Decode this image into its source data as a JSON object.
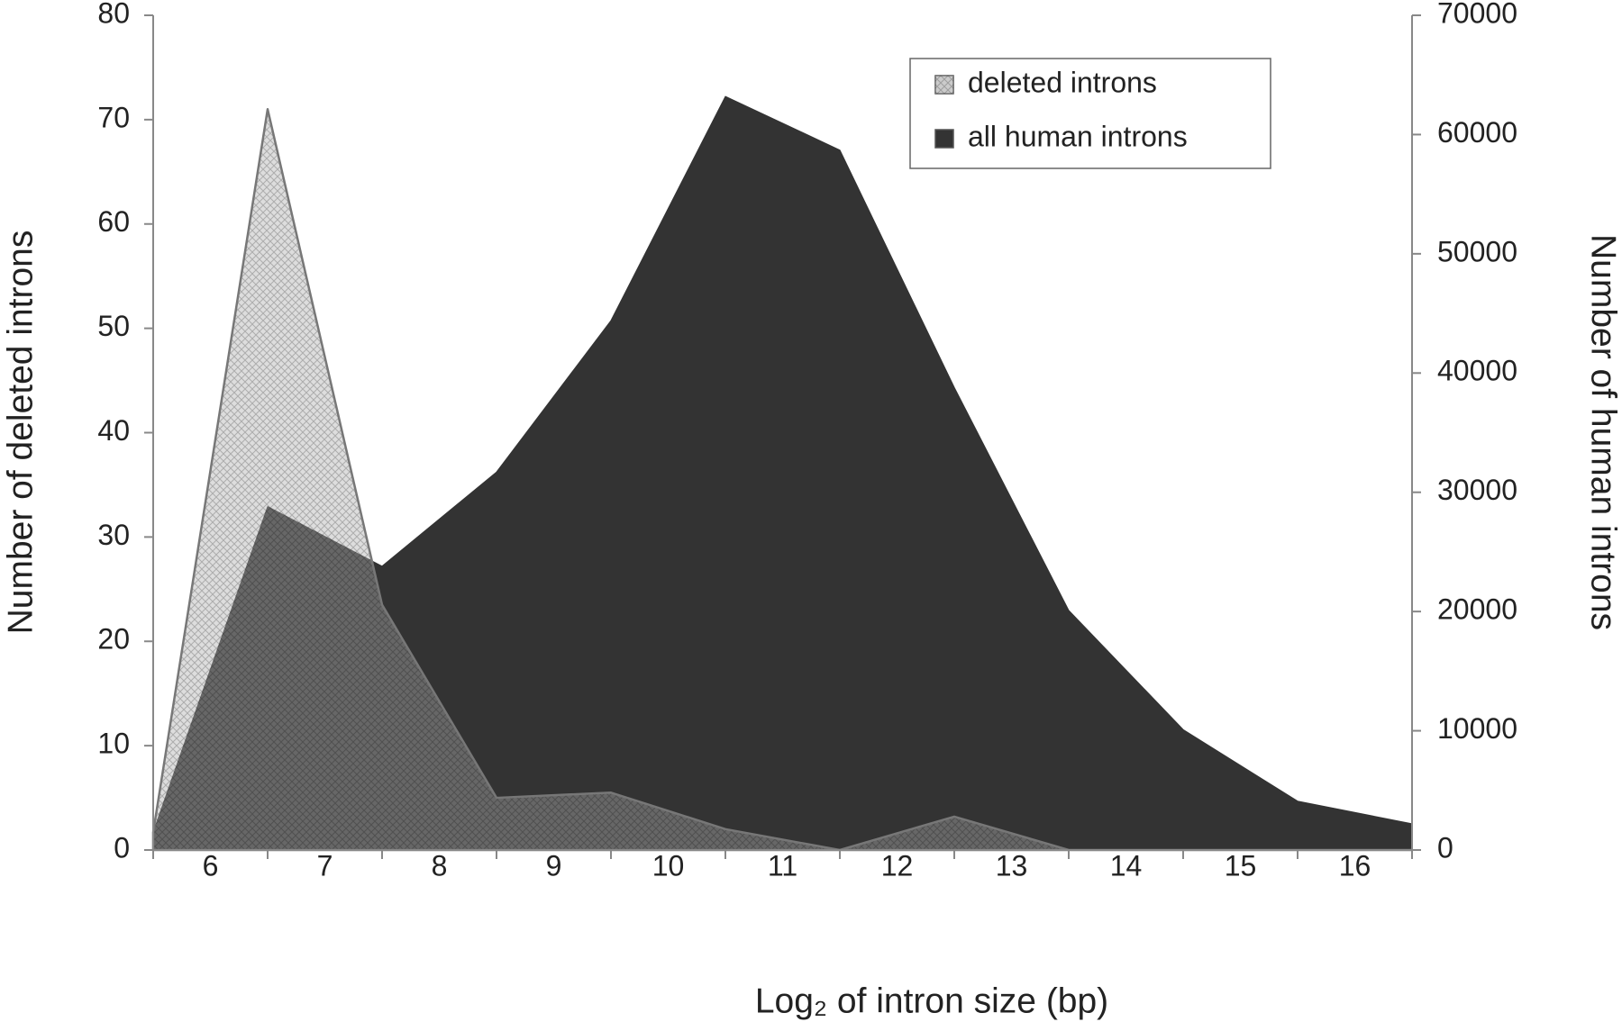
{
  "chart_data": {
    "type": "area",
    "x_label": "Log₂ of intron size (bp)",
    "y_label": "Number of deleted introns",
    "y2_label": "Number of human introns",
    "x": [
      5.5,
      6.5,
      7.5,
      8.5,
      9.5,
      10.5,
      11.5,
      12.5,
      13.5,
      14.5,
      15.5,
      16.5
    ],
    "xlim": [
      5.5,
      16.5
    ],
    "xticks": [
      6,
      7,
      8,
      9,
      10,
      11,
      12,
      13,
      14,
      15,
      16
    ],
    "ylim": [
      0,
      80
    ],
    "yticks": [
      0,
      10,
      20,
      30,
      40,
      50,
      60,
      70,
      80
    ],
    "y2lim": [
      0,
      70000
    ],
    "y2ticks": [
      0,
      10000,
      20000,
      30000,
      40000,
      50000,
      60000,
      70000
    ],
    "legend": "upper right",
    "series": [
      {
        "name": "all human introns",
        "color": "#333333",
        "axis": "y2",
        "values": [
          1500,
          28800,
          23800,
          31700,
          44400,
          63200,
          58700,
          38800,
          20100,
          10100,
          4100,
          2200
        ]
      },
      {
        "name": "deleted introns",
        "color": "#e0e0e0",
        "values": [
          1.7,
          71,
          23.5,
          5,
          5.5,
          2,
          0,
          3.2,
          0,
          0,
          0,
          0
        ]
      }
    ]
  }
}
